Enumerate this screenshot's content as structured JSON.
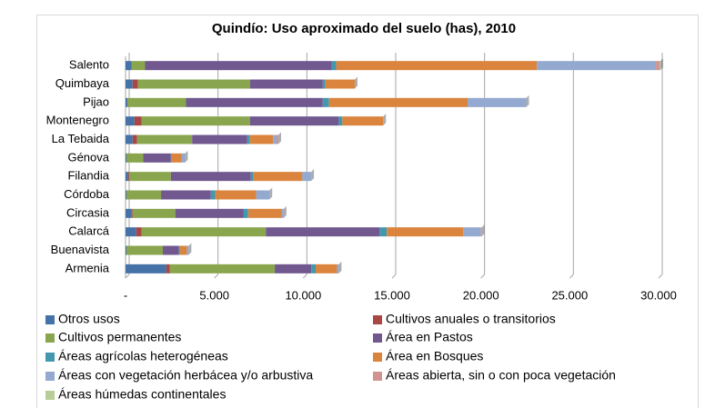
{
  "chart_data": {
    "type": "stacked-barh",
    "title": "Quindío: Uso aproximado del suelo (has), 2010",
    "categories": [
      "Salento",
      "Quimbaya",
      "Pijao",
      "Montenegro",
      "La Tebaida",
      "Génova",
      "Filandia",
      "Córdoba",
      "Circasia",
      "Calarcá",
      "Buenavista",
      "Armenia"
    ],
    "series": [
      {
        "name": "Otros usos",
        "color": "#4572a7",
        "values": [
          350,
          400,
          100,
          500,
          400,
          50,
          150,
          50,
          350,
          600,
          50,
          2300
        ]
      },
      {
        "name": "Cultivos anuales o transitorios",
        "color": "#aa4643",
        "values": [
          0,
          300,
          0,
          400,
          250,
          0,
          50,
          0,
          50,
          300,
          0,
          200
        ]
      },
      {
        "name": "Cultivos permanentes",
        "color": "#89a54e",
        "values": [
          750,
          6300,
          3300,
          6100,
          3100,
          950,
          2350,
          1950,
          2400,
          7000,
          2050,
          5900
        ]
      },
      {
        "name": "Área en Pastos",
        "color": "#71588f",
        "values": [
          10500,
          4100,
          7700,
          5000,
          3100,
          1550,
          4500,
          2800,
          3850,
          6400,
          900,
          2050
        ]
      },
      {
        "name": "Áreas agrícolas heterogéneas",
        "color": "#4198af",
        "values": [
          250,
          150,
          350,
          200,
          150,
          50,
          150,
          250,
          250,
          400,
          50,
          250
        ]
      },
      {
        "name": "Área en Bosques",
        "color": "#db843d",
        "values": [
          11300,
          1650,
          7800,
          2300,
          1300,
          550,
          2750,
          2300,
          1900,
          4300,
          400,
          1200
        ]
      },
      {
        "name": "Áreas con vegetación herbácea y/o arbustiva",
        "color": "#93a9cf",
        "values": [
          6700,
          0,
          3300,
          0,
          200,
          200,
          500,
          750,
          100,
          1000,
          100,
          100
        ]
      },
      {
        "name": "Áreas abierta, sin o con poca vegetación",
        "color": "#d19392",
        "values": [
          200,
          0,
          0,
          0,
          100,
          0,
          0,
          0,
          0,
          50,
          0,
          0
        ]
      },
      {
        "name": "Áreas húmedas continentales",
        "color": "#b9cd96",
        "values": [
          50,
          0,
          0,
          0,
          0,
          0,
          0,
          0,
          0,
          0,
          0,
          0
        ]
      }
    ],
    "xlim": [
      0,
      30000
    ],
    "xticks": [
      {
        "value": 0,
        "label": "-"
      },
      {
        "value": 5000,
        "label": "5.000"
      },
      {
        "value": 10000,
        "label": "10.000"
      },
      {
        "value": 15000,
        "label": "15.000"
      },
      {
        "value": 20000,
        "label": "20.000"
      },
      {
        "value": 25000,
        "label": "25.000"
      },
      {
        "value": 30000,
        "label": "30.000"
      }
    ],
    "grid": true
  }
}
